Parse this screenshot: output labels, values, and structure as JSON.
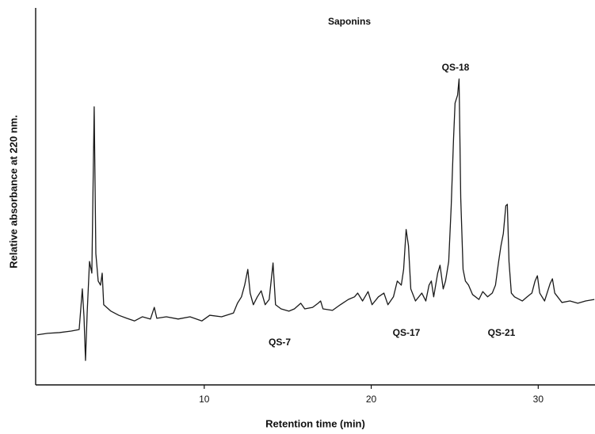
{
  "chart_data": {
    "type": "line",
    "title": "Saponins",
    "x_label": "Retention time (min)",
    "y_label": "Relative absorbance at 220 nm.",
    "annotations": [
      "QS-18",
      "QS-7",
      "QS-17",
      "QS-21"
    ],
    "xlim": [
      0,
      33.4
    ],
    "xticks": [
      10,
      20,
      30
    ],
    "ylim": [
      0,
      100
    ],
    "grid": false,
    "series": [
      {
        "color": "#1a1a1a",
        "x": [
          0,
          0.62,
          1.33,
          2.04,
          2.51,
          2.7,
          2.8,
          2.89,
          2.99,
          3.13,
          3.27,
          3.41,
          3.51,
          3.65,
          3.79,
          3.89,
          3.98,
          4.41,
          4.88,
          5.36,
          5.83,
          6.3,
          6.78,
          7.01,
          7.16,
          7.73,
          8.44,
          9.15,
          9.86,
          10.33,
          11.04,
          11.75,
          11.99,
          12.23,
          12.42,
          12.61,
          12.75,
          12.94,
          13.18,
          13.41,
          13.65,
          13.89,
          14.12,
          14.27,
          14.6,
          15.07,
          15.4,
          15.78,
          16.02,
          16.49,
          16.82,
          16.97,
          17.11,
          17.68,
          18.15,
          18.63,
          19.0,
          19.19,
          19.48,
          19.81,
          20.05,
          20.43,
          20.76,
          21.0,
          21.33,
          21.56,
          21.8,
          21.94,
          22.09,
          22.23,
          22.37,
          22.65,
          23.03,
          23.27,
          23.46,
          23.6,
          23.74,
          23.98,
          24.12,
          24.31,
          24.45,
          24.64,
          24.79,
          24.93,
          25.02,
          25.17,
          25.26,
          25.36,
          25.5,
          25.64,
          25.83,
          26.07,
          26.45,
          26.68,
          26.97,
          27.25,
          27.44,
          27.63,
          27.77,
          27.91,
          28.06,
          28.15,
          28.25,
          28.39,
          28.58,
          29.05,
          29.34,
          29.62,
          29.81,
          29.95,
          30.09,
          30.38,
          30.71,
          30.85,
          30.99,
          31.42,
          31.9,
          32.37,
          32.84,
          33.36
        ],
        "values": [
          13.1,
          13.5,
          13.7,
          14.1,
          14.5,
          25.3,
          17.9,
          6.3,
          18.9,
          32.6,
          29.5,
          73.7,
          34.7,
          27.4,
          26.3,
          29.5,
          21.1,
          19.4,
          18.3,
          17.5,
          16.8,
          17.9,
          17.3,
          20.4,
          17.5,
          17.9,
          17.3,
          17.9,
          16.8,
          18.3,
          17.9,
          18.9,
          21.5,
          23.2,
          26.3,
          30.5,
          24.2,
          21.1,
          23.2,
          24.8,
          21.1,
          22.5,
          32.2,
          21.1,
          20.0,
          19.4,
          20.0,
          21.5,
          20.0,
          20.4,
          21.5,
          22.1,
          20.0,
          19.6,
          21.1,
          22.5,
          23.2,
          24.2,
          22.1,
          24.6,
          21.1,
          23.2,
          24.2,
          21.1,
          23.2,
          27.4,
          26.3,
          30.5,
          41.1,
          36.8,
          25.3,
          22.1,
          24.2,
          22.1,
          26.3,
          27.4,
          23.2,
          29.5,
          31.6,
          25.3,
          27.4,
          32.6,
          47.4,
          65.3,
          74.7,
          76.8,
          81.1,
          49.5,
          30.5,
          27.4,
          26.3,
          23.8,
          22.5,
          24.6,
          23.2,
          24.2,
          26.3,
          32.6,
          36.8,
          40.0,
          47.4,
          47.8,
          32.6,
          24.2,
          23.2,
          22.1,
          23.2,
          24.2,
          27.4,
          28.8,
          24.2,
          22.1,
          26.7,
          28.0,
          24.2,
          21.7,
          22.1,
          21.5,
          22.1,
          22.5
        ]
      }
    ]
  }
}
